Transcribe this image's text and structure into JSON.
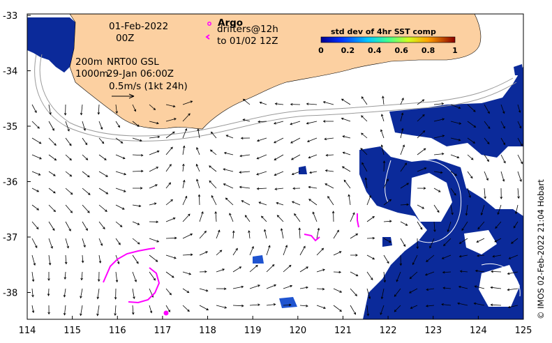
{
  "map": {
    "date": "01-Feb-2022",
    "time": "00Z",
    "contours": "200m",
    "isobath_2": "1000m",
    "product": "NRT00 GSL",
    "product_time": "29-Jan 06:00Z",
    "scale_label": "0.5m/s (1kt 24h)",
    "argo_label": "Argo",
    "drifters_label": "drifters@12h",
    "drifters_to": "to 01/02 12Z",
    "credit": "© IMOS 02-Feb-2022 21:04 Hobart"
  },
  "colorbar": {
    "title": "std dev of 4hr SST comp",
    "ticks": [
      "0",
      "0.2",
      "0.4",
      "0.6",
      "0.8",
      "1"
    ]
  },
  "axes": {
    "x_ticks": [
      "114",
      "115",
      "116",
      "117",
      "118",
      "119",
      "120",
      "121",
      "122",
      "123",
      "124",
      "125"
    ],
    "y_ticks": [
      "-33",
      "-34",
      "-35",
      "-36",
      "-37",
      "-38"
    ]
  },
  "colors": {
    "land": "#fcd0a1",
    "sst_low": "#0b2a9a",
    "drifter": "#ff00ff"
  }
}
